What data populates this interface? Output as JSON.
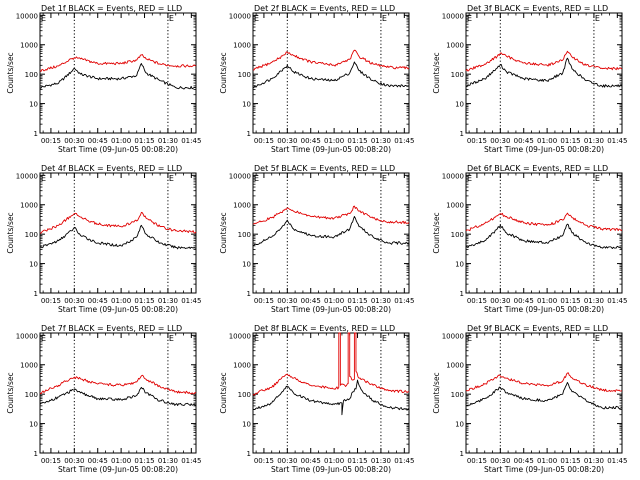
{
  "colors": {
    "events": "#000000",
    "lld": "#e00000",
    "axis": "#000000",
    "background": "#ffffff"
  },
  "chart_data": [
    {
      "type": "line",
      "title": "Det 1f BLACK = Events, RED = LLD",
      "xlabel": "Start Time (09-Jun-05 00:08:20)",
      "ylabel": "Counts/sec",
      "yscale": "log",
      "ylim": [
        1,
        12000
      ],
      "xlim": [
        "00:08",
        "01:48"
      ],
      "xticks": [
        "00:15",
        "00:30",
        "00:45",
        "01:00",
        "01:15",
        "01:30",
        "01:45"
      ],
      "ytick_labels": [
        "1",
        "10",
        "100",
        "1000",
        "10000"
      ],
      "annotations": [
        "E",
        "E"
      ],
      "vlines": [
        "00:30",
        "01:30"
      ],
      "grid": false,
      "series": [
        {
          "id": "events",
          "color": "black",
          "x": [
            "00:08",
            "00:20",
            "00:28",
            "00:30",
            "00:34",
            "00:45",
            "01:00",
            "01:10",
            "01:13",
            "01:16",
            "01:25",
            "01:35",
            "01:48"
          ],
          "values": [
            35,
            50,
            120,
            160,
            100,
            70,
            70,
            90,
            230,
            110,
            60,
            35,
            35
          ]
        },
        {
          "id": "lld",
          "color": "red",
          "x": [
            "00:08",
            "00:20",
            "00:28",
            "00:30",
            "00:34",
            "00:45",
            "01:00",
            "01:10",
            "01:13",
            "01:16",
            "01:25",
            "01:35",
            "01:48"
          ],
          "values": [
            130,
            190,
            330,
            360,
            330,
            230,
            230,
            300,
            450,
            330,
            220,
            190,
            190
          ]
        }
      ]
    },
    {
      "type": "line",
      "title": "Det 2f BLACK = Events, RED = LLD",
      "xlabel": "Start Time (09-Jun-05 00:08:20)",
      "ylabel": "Counts/sec",
      "yscale": "log",
      "ylim": [
        1,
        12000
      ],
      "xlim": [
        "00:08",
        "01:48"
      ],
      "xticks": [
        "00:15",
        "00:30",
        "00:45",
        "01:00",
        "01:15",
        "01:30",
        "01:45"
      ],
      "ytick_labels": [
        "1",
        "10",
        "100",
        "1000",
        "10000"
      ],
      "annotations": [
        "E",
        "E"
      ],
      "vlines": [
        "00:30",
        "01:30"
      ],
      "grid": false,
      "series": [
        {
          "id": "events",
          "color": "black",
          "x": [
            "00:08",
            "00:20",
            "00:28",
            "00:30",
            "00:34",
            "00:45",
            "01:00",
            "01:10",
            "01:13",
            "01:16",
            "01:25",
            "01:35",
            "01:48"
          ],
          "values": [
            35,
            70,
            160,
            200,
            120,
            70,
            60,
            110,
            260,
            130,
            60,
            40,
            40
          ]
        },
        {
          "id": "lld",
          "color": "red",
          "x": [
            "00:08",
            "00:20",
            "00:28",
            "00:30",
            "00:34",
            "00:45",
            "01:00",
            "01:10",
            "01:13",
            "01:16",
            "01:25",
            "01:35",
            "01:48"
          ],
          "values": [
            140,
            250,
            450,
            560,
            430,
            260,
            200,
            320,
            650,
            400,
            220,
            170,
            160
          ]
        }
      ]
    },
    {
      "type": "line",
      "title": "Det 3f BLACK = Events, RED = LLD",
      "xlabel": "Start Time (09-Jun-05 00:08:20)",
      "ylabel": "Counts/sec",
      "yscale": "log",
      "ylim": [
        1,
        12000
      ],
      "xlim": [
        "00:08",
        "01:48"
      ],
      "xticks": [
        "00:15",
        "00:30",
        "00:45",
        "01:00",
        "01:15",
        "01:30",
        "01:45"
      ],
      "ytick_labels": [
        "1",
        "10",
        "100",
        "1000",
        "10000"
      ],
      "annotations": [
        "E",
        "E"
      ],
      "vlines": [
        "00:30",
        "01:30"
      ],
      "grid": false,
      "series": [
        {
          "id": "events",
          "color": "black",
          "x": [
            "00:08",
            "00:20",
            "00:28",
            "00:30",
            "00:34",
            "00:45",
            "01:00",
            "01:10",
            "01:13",
            "01:16",
            "01:25",
            "01:35",
            "01:48"
          ],
          "values": [
            40,
            70,
            160,
            210,
            120,
            70,
            60,
            110,
            350,
            150,
            60,
            40,
            40
          ]
        },
        {
          "id": "lld",
          "color": "red",
          "x": [
            "00:08",
            "00:20",
            "00:28",
            "00:30",
            "00:34",
            "00:45",
            "01:00",
            "01:10",
            "01:13",
            "01:16",
            "01:25",
            "01:35",
            "01:48"
          ],
          "values": [
            130,
            220,
            400,
            520,
            400,
            240,
            200,
            300,
            600,
            380,
            200,
            160,
            150
          ]
        }
      ]
    },
    {
      "type": "line",
      "title": "Det 4f BLACK = Events, RED = LLD",
      "xlabel": "Start Time (09-Jun-05 00:08:20)",
      "ylabel": "Counts/sec",
      "yscale": "log",
      "ylim": [
        1,
        12000
      ],
      "xlim": [
        "00:08",
        "01:48"
      ],
      "xticks": [
        "00:15",
        "00:30",
        "00:45",
        "01:00",
        "01:15",
        "01:30",
        "01:45"
      ],
      "ytick_labels": [
        "1",
        "10",
        "100",
        "1000",
        "10000"
      ],
      "annotations": [
        "E",
        "E"
      ],
      "vlines": [
        "00:30",
        "01:30"
      ],
      "grid": false,
      "series": [
        {
          "id": "events",
          "color": "black",
          "x": [
            "00:08",
            "00:20",
            "00:28",
            "00:30",
            "00:34",
            "00:45",
            "01:00",
            "01:10",
            "01:13",
            "01:16",
            "01:25",
            "01:35",
            "01:48"
          ],
          "values": [
            35,
            60,
            130,
            170,
            90,
            50,
            40,
            80,
            200,
            100,
            50,
            35,
            35
          ]
        },
        {
          "id": "lld",
          "color": "red",
          "x": [
            "00:08",
            "00:20",
            "00:28",
            "00:30",
            "00:34",
            "00:45",
            "01:00",
            "01:10",
            "01:13",
            "01:16",
            "01:25",
            "01:35",
            "01:48"
          ],
          "values": [
            110,
            200,
            420,
            500,
            380,
            220,
            180,
            280,
            550,
            350,
            180,
            130,
            120
          ]
        }
      ]
    },
    {
      "type": "line",
      "title": "Det 5f BLACK = Events, RED = LLD",
      "xlabel": "Start Time (09-Jun-05 00:08:20)",
      "ylabel": "Counts/sec",
      "yscale": "log",
      "ylim": [
        1,
        12000
      ],
      "xlim": [
        "00:08",
        "01:48"
      ],
      "xticks": [
        "00:15",
        "00:30",
        "00:45",
        "01:00",
        "01:15",
        "01:30",
        "01:45"
      ],
      "ytick_labels": [
        "1",
        "10",
        "100",
        "1000",
        "10000"
      ],
      "annotations": [
        "E",
        "E"
      ],
      "vlines": [
        "00:30",
        "01:30"
      ],
      "grid": false,
      "series": [
        {
          "id": "events",
          "color": "black",
          "x": [
            "00:08",
            "00:20",
            "00:28",
            "00:30",
            "00:34",
            "00:45",
            "01:00",
            "01:10",
            "01:13",
            "01:16",
            "01:25",
            "01:35",
            "01:48"
          ],
          "values": [
            40,
            80,
            200,
            300,
            150,
            90,
            80,
            150,
            400,
            180,
            80,
            50,
            50
          ]
        },
        {
          "id": "lld",
          "color": "red",
          "x": [
            "00:08",
            "00:20",
            "00:28",
            "00:30",
            "00:34",
            "00:45",
            "01:00",
            "01:10",
            "01:13",
            "01:16",
            "01:25",
            "01:35",
            "01:48"
          ],
          "values": [
            220,
            360,
            650,
            780,
            600,
            400,
            350,
            500,
            900,
            600,
            350,
            260,
            250
          ]
        }
      ]
    },
    {
      "type": "line",
      "title": "Det 6f BLACK = Events, RED = LLD",
      "xlabel": "Start Time (09-Jun-05 00:08:20)",
      "ylabel": "Counts/sec",
      "yscale": "log",
      "ylim": [
        1,
        12000
      ],
      "xlim": [
        "00:08",
        "01:48"
      ],
      "xticks": [
        "00:15",
        "00:30",
        "00:45",
        "01:00",
        "01:15",
        "01:30",
        "01:45"
      ],
      "ytick_labels": [
        "1",
        "10",
        "100",
        "1000",
        "10000"
      ],
      "annotations": [
        "E",
        "E"
      ],
      "vlines": [
        "00:30",
        "01:30"
      ],
      "grid": false,
      "series": [
        {
          "id": "events",
          "color": "black",
          "x": [
            "00:08",
            "00:20",
            "00:28",
            "00:30",
            "00:34",
            "00:45",
            "01:00",
            "01:10",
            "01:13",
            "01:16",
            "01:25",
            "01:35",
            "01:48"
          ],
          "values": [
            35,
            60,
            150,
            200,
            110,
            60,
            50,
            90,
            220,
            110,
            50,
            35,
            35
          ]
        },
        {
          "id": "lld",
          "color": "red",
          "x": [
            "00:08",
            "00:20",
            "00:28",
            "00:30",
            "00:34",
            "00:45",
            "01:00",
            "01:10",
            "01:13",
            "01:16",
            "01:25",
            "01:35",
            "01:48"
          ],
          "values": [
            130,
            230,
            420,
            500,
            400,
            240,
            200,
            300,
            520,
            360,
            200,
            150,
            140
          ]
        }
      ]
    },
    {
      "type": "line",
      "title": "Det 7f BLACK = Events, RED = LLD",
      "xlabel": "Start Time (09-Jun-05 00:08:20)",
      "ylabel": "Counts/sec",
      "yscale": "log",
      "ylim": [
        1,
        12000
      ],
      "xlim": [
        "00:08",
        "01:48"
      ],
      "xticks": [
        "00:15",
        "00:30",
        "00:45",
        "01:00",
        "01:15",
        "01:30",
        "01:45"
      ],
      "ytick_labels": [
        "1",
        "10",
        "100",
        "1000",
        "10000"
      ],
      "annotations": [
        "E",
        "E"
      ],
      "vlines": [
        "00:30",
        "01:30"
      ],
      "grid": false,
      "series": [
        {
          "id": "events",
          "color": "black",
          "x": [
            "00:08",
            "00:20",
            "00:28",
            "00:30",
            "00:34",
            "00:45",
            "01:00",
            "01:10",
            "01:13",
            "01:16",
            "01:25",
            "01:35",
            "01:48"
          ],
          "values": [
            45,
            80,
            130,
            140,
            110,
            70,
            65,
            90,
            170,
            110,
            60,
            45,
            45
          ]
        },
        {
          "id": "lld",
          "color": "red",
          "x": [
            "00:08",
            "00:20",
            "00:28",
            "00:30",
            "00:34",
            "00:45",
            "01:00",
            "01:10",
            "01:13",
            "01:16",
            "01:25",
            "01:35",
            "01:48"
          ],
          "values": [
            110,
            200,
            350,
            380,
            330,
            220,
            200,
            260,
            420,
            320,
            180,
            120,
            110
          ]
        }
      ]
    },
    {
      "type": "line",
      "title": "Det 8f BLACK = Events, RED = LLD",
      "xlabel": "Start Time (09-Jun-05 00:08:20)",
      "ylabel": "Counts/sec",
      "yscale": "log",
      "ylim": [
        1,
        12000
      ],
      "xlim": [
        "00:08",
        "01:48"
      ],
      "xticks": [
        "00:15",
        "00:30",
        "00:45",
        "01:00",
        "01:15",
        "01:30",
        "01:45"
      ],
      "ytick_labels": [
        "1",
        "10",
        "100",
        "1000",
        "10000"
      ],
      "annotations": [
        "E",
        "E"
      ],
      "vlines": [
        "00:30",
        "01:30"
      ],
      "grid": false,
      "series": [
        {
          "id": "events",
          "color": "black",
          "x": [
            "00:08",
            "00:20",
            "00:28",
            "00:30",
            "00:34",
            "00:45",
            "01:00",
            "01:05",
            "01:05",
            "01:06",
            "01:10",
            "01:12",
            "01:14",
            "01:15",
            "01:16",
            "01:18",
            "01:25",
            "01:35",
            "01:48"
          ],
          "values": [
            30,
            50,
            150,
            180,
            110,
            60,
            45,
            50,
            20,
            60,
            70,
            120,
            150,
            300,
            200,
            130,
            60,
            35,
            30
          ]
        },
        {
          "id": "lld",
          "color": "red",
          "x": [
            "00:08",
            "00:20",
            "00:28",
            "00:30",
            "00:34",
            "00:45",
            "01:00",
            "01:03",
            "01:03",
            "01:04",
            "01:04",
            "01:08",
            "01:09",
            "01:09",
            "01:10",
            "01:10",
            "01:12",
            "01:13",
            "01:13",
            "01:14",
            "01:14",
            "01:16",
            "01:25",
            "01:35",
            "01:48"
          ],
          "values": [
            100,
            170,
            400,
            480,
            350,
            200,
            150,
            170,
            12000,
            12000,
            200,
            200,
            230,
            12000,
            12000,
            400,
            300,
            320,
            12000,
            12000,
            600,
            350,
            200,
            130,
            120
          ]
        }
      ]
    },
    {
      "type": "line",
      "title": "Det 9f BLACK = Events, RED = LLD",
      "xlabel": "Start Time (09-Jun-05 00:08:20)",
      "ylabel": "Counts/sec",
      "yscale": "log",
      "ylim": [
        1,
        12000
      ],
      "xlim": [
        "00:08",
        "01:48"
      ],
      "xticks": [
        "00:15",
        "00:30",
        "00:45",
        "01:00",
        "01:15",
        "01:30",
        "01:45"
      ],
      "ytick_labels": [
        "1",
        "10",
        "100",
        "1000",
        "10000"
      ],
      "annotations": [
        "E",
        "E"
      ],
      "vlines": [
        "00:30",
        "01:30"
      ],
      "grid": false,
      "series": [
        {
          "id": "events",
          "color": "black",
          "x": [
            "00:08",
            "00:20",
            "00:28",
            "00:30",
            "00:34",
            "00:45",
            "01:00",
            "01:10",
            "01:13",
            "01:16",
            "01:25",
            "01:35",
            "01:48"
          ],
          "values": [
            40,
            70,
            140,
            170,
            110,
            70,
            60,
            100,
            250,
            120,
            60,
            35,
            35
          ]
        },
        {
          "id": "lld",
          "color": "red",
          "x": [
            "00:08",
            "00:20",
            "00:28",
            "00:30",
            "00:34",
            "00:45",
            "01:00",
            "01:10",
            "01:13",
            "01:16",
            "01:25",
            "01:35",
            "01:48"
          ],
          "values": [
            130,
            220,
            380,
            420,
            350,
            230,
            200,
            280,
            520,
            360,
            200,
            140,
            130
          ]
        }
      ]
    }
  ]
}
